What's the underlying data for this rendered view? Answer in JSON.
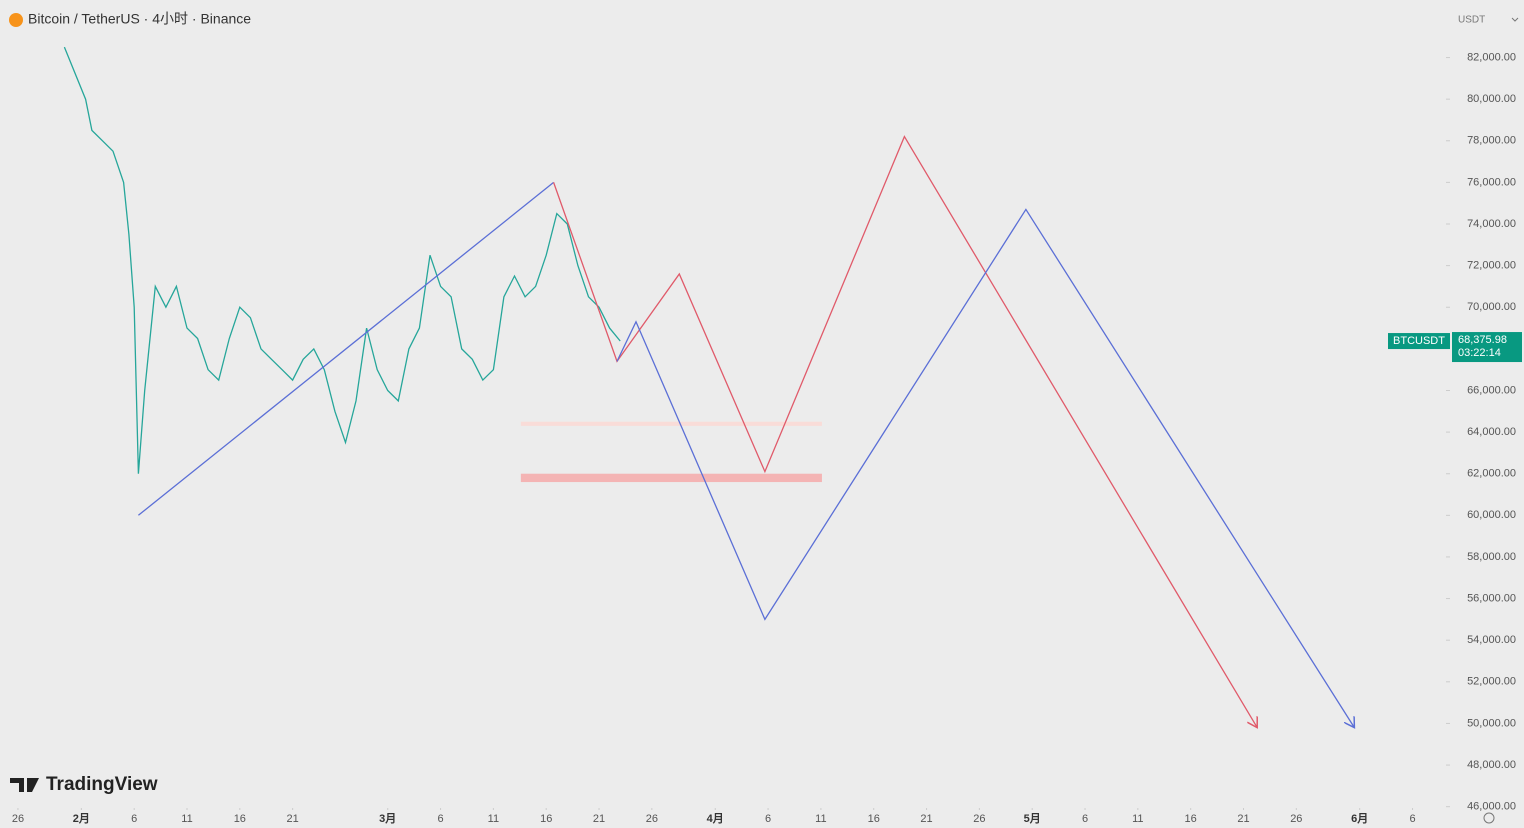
{
  "header": {
    "title": "Bitcoin / TetherUS · 4小时 · Binance",
    "currency": "USDT"
  },
  "logo": "TradingView",
  "chart_data": {
    "type": "line",
    "x": [
      4.4,
      6.4,
      7,
      8,
      9,
      10,
      10.5,
      11,
      11.4,
      12,
      13,
      14,
      15,
      16,
      17,
      18,
      19,
      20,
      21,
      22,
      23,
      24,
      25,
      26,
      27,
      28,
      29,
      30,
      31,
      32,
      33,
      34,
      35,
      36,
      37,
      38,
      39,
      40,
      41,
      42,
      43,
      44,
      45,
      46,
      47,
      48,
      49,
      50,
      51,
      52,
      53,
      54,
      55,
      56,
      57
    ],
    "values": [
      82500,
      80000,
      78500,
      78000,
      77500,
      76000,
      73500,
      70000,
      62000,
      66000,
      71000,
      70000,
      71000,
      69000,
      68500,
      67000,
      66500,
      68500,
      70000,
      69500,
      68000,
      67500,
      67000,
      66500,
      67500,
      68000,
      67000,
      65000,
      63500,
      65500,
      69000,
      67000,
      66000,
      65500,
      68000,
      69000,
      72500,
      71000,
      70500,
      68000,
      67500,
      66500,
      67000,
      70500,
      71500,
      70500,
      71000,
      72500,
      74500,
      74000,
      72000,
      70500,
      70000,
      69000,
      68376
    ],
    "color": "#26a69a",
    "series": [
      {
        "color": "#5b6fd6",
        "x": [
          11.4,
          50.7
        ],
        "values": [
          60000,
          76000
        ]
      },
      {
        "color": "#e05a6a",
        "x": [
          50.7,
          56.7,
          62.6,
          70.7,
          83.9,
          117.3
        ],
        "values": [
          76000,
          67400,
          71600,
          62100,
          78200,
          49800
        ]
      },
      {
        "color": "#5b6fd6",
        "x": [
          56.7,
          58.5,
          70.7,
          95.4,
          126.5
        ],
        "values": [
          67400,
          69300,
          55000,
          74700,
          49800
        ]
      }
    ],
    "bands": [
      {
        "color": "#f4b4b4",
        "x": [
          47.6,
          76.1
        ],
        "values": [
          61600,
          62000
        ]
      },
      {
        "color": "#f9dcd8",
        "x": [
          47.6,
          76.1
        ],
        "values": [
          64300,
          64500
        ]
      }
    ],
    "last": {
      "symbol": "BTCUSDT",
      "value": 68375.98,
      "label": "68,375.98",
      "countdown": "03:22:14"
    },
    "xlim": [
      -1.7,
      134.6
    ],
    "xticks": [
      {
        "value": 0,
        "label": "26"
      },
      {
        "value": 6,
        "label": "2月"
      },
      {
        "value": 11,
        "label": "6"
      },
      {
        "value": 16,
        "label": "11"
      },
      {
        "value": 21,
        "label": "16"
      },
      {
        "value": 26,
        "label": "21"
      },
      {
        "value": 35,
        "label": "3月"
      },
      {
        "value": 40,
        "label": "6"
      },
      {
        "value": 45,
        "label": "11"
      },
      {
        "value": 50,
        "label": "16"
      },
      {
        "value": 55,
        "label": "21"
      },
      {
        "value": 60,
        "label": "26"
      },
      {
        "value": 66,
        "label": "4月"
      },
      {
        "value": 71,
        "label": "6"
      },
      {
        "value": 76,
        "label": "11"
      },
      {
        "value": 81,
        "label": "16"
      },
      {
        "value": 86,
        "label": "21"
      },
      {
        "value": 91,
        "label": "26"
      },
      {
        "value": 96,
        "label": "5月"
      },
      {
        "value": 101,
        "label": "6"
      },
      {
        "value": 106,
        "label": "11"
      },
      {
        "value": 111,
        "label": "16"
      },
      {
        "value": 116,
        "label": "21"
      },
      {
        "value": 121,
        "label": "26"
      },
      {
        "value": 127,
        "label": "6月"
      },
      {
        "value": 132,
        "label": "6"
      }
    ],
    "ylim": [
      44975,
      84765
    ],
    "yticks": [
      {
        "value": 46000,
        "label": "46,000.00"
      },
      {
        "value": 48000,
        "label": "48,000.00"
      },
      {
        "value": 50000,
        "label": "50,000.00"
      },
      {
        "value": 52000,
        "label": "52,000.00"
      },
      {
        "value": 54000,
        "label": "54,000.00"
      },
      {
        "value": 56000,
        "label": "56,000.00"
      },
      {
        "value": 58000,
        "label": "58,000.00"
      },
      {
        "value": 60000,
        "label": "60,000.00"
      },
      {
        "value": 62000,
        "label": "62,000.00"
      },
      {
        "value": 64000,
        "label": "64,000.00"
      },
      {
        "value": 66000,
        "label": "66,000.00"
      },
      {
        "value": 70000,
        "label": "70,000.00"
      },
      {
        "value": 72000,
        "label": "72,000.00"
      },
      {
        "value": 74000,
        "label": "74,000.00"
      },
      {
        "value": 76000,
        "label": "76,000.00"
      },
      {
        "value": 78000,
        "label": "78,000.00"
      },
      {
        "value": 80000,
        "label": "80,000.00"
      },
      {
        "value": 82000,
        "label": "82,000.00"
      }
    ]
  }
}
